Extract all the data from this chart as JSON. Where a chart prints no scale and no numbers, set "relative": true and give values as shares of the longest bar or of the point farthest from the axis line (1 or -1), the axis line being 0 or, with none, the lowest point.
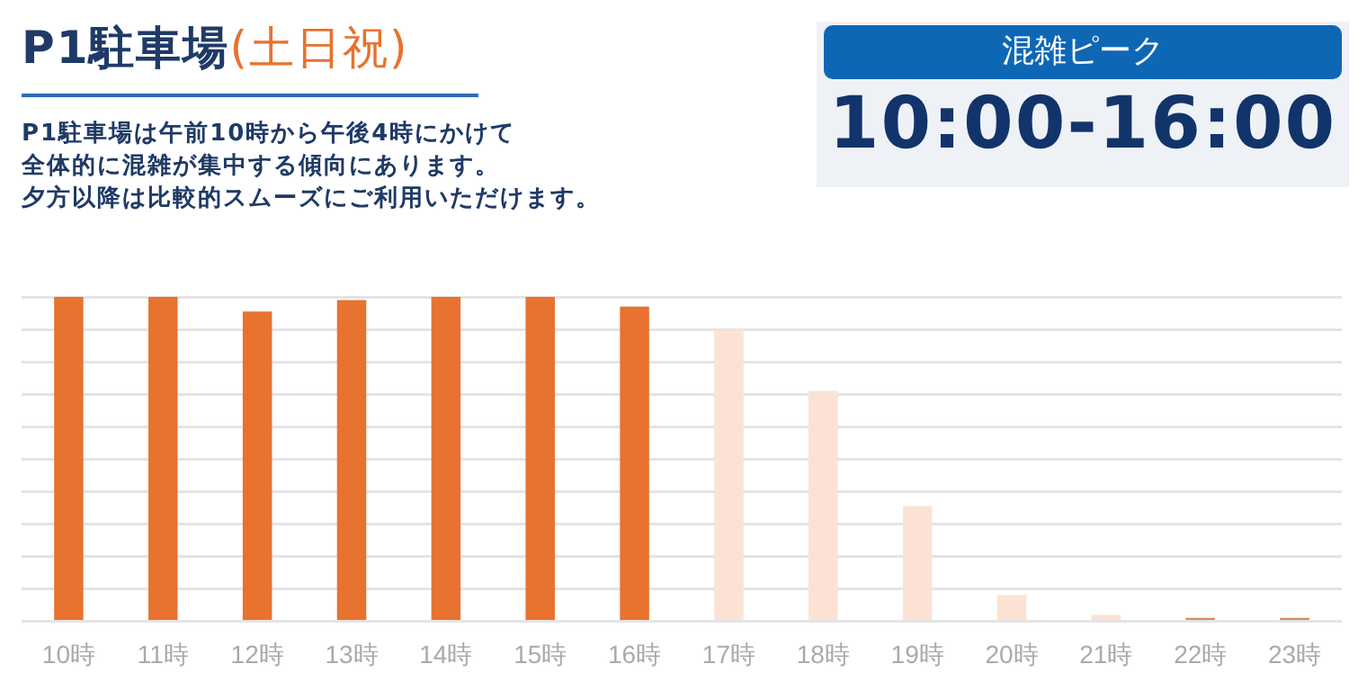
{
  "chart_data": {
    "type": "bar",
    "title": "P1駐車場",
    "subtitle": "(土日祝)",
    "annotations": [
      "P1駐車場は午前10時から午後4時にかけて",
      "全体的に混雑が集中する傾向にあります。",
      "夕方以降は比較的スムーズにご利用いただけます。",
      "混雑ピーク",
      "10:00-16:00"
    ],
    "categories": [
      "10時",
      "11時",
      "12時",
      "13時",
      "14時",
      "15時",
      "16時",
      "17時",
      "18時",
      "19時",
      "20時",
      "21時",
      "22時",
      "23時"
    ],
    "values": [
      1,
      1,
      0.955,
      0.99,
      1,
      1,
      0.97,
      0.9,
      0.71,
      0.355,
      0.08,
      0.02,
      0.01,
      0.01
    ],
    "colors": [
      "#e8722f",
      "#e8722f",
      "#e8722f",
      "#e8722f",
      "#e8722f",
      "#e8722f",
      "#e8722f",
      "#fbe2d4",
      "#fbe2d4",
      "#fbe2d4",
      "#fbe2d4",
      "#fbe2d4",
      "#d9885f",
      "#d9885f"
    ],
    "relative": true,
    "grid": "y",
    "legend": false
  }
}
